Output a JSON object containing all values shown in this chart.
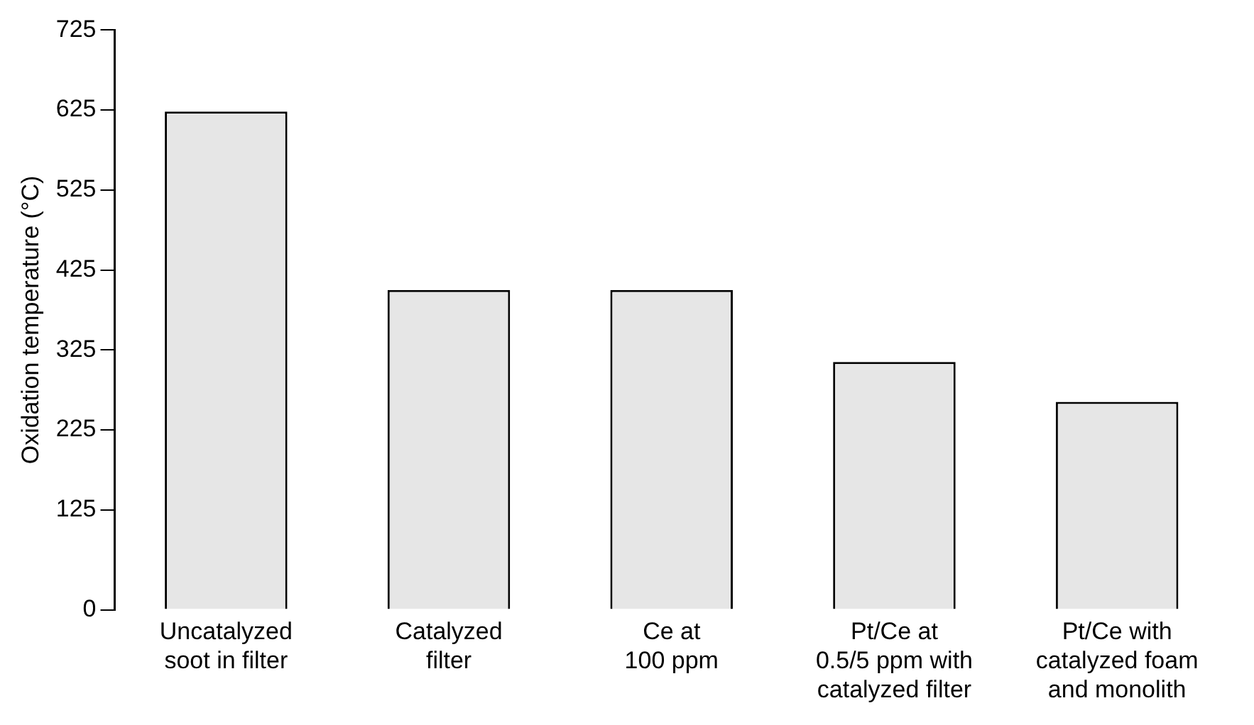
{
  "chart_data": {
    "type": "bar",
    "ylabel": "Oxidation temperature (°C)",
    "categories": [
      "Uncatalyzed\nsoot in filter",
      "Catalyzed\nfilter",
      "Ce at\n100 ppm",
      "Pt/Ce at\n0.5/5 ppm with\ncatalyzed filter",
      "Pt/Ce with\ncatalyzed foam\nand monolith"
    ],
    "values": [
      623,
      400,
      400,
      310,
      260
    ],
    "color": "#e6e6e6",
    "ylim": [
      0,
      725
    ],
    "yticks": [
      0,
      125,
      225,
      325,
      425,
      525,
      625,
      725
    ],
    "grid": false,
    "legend": false
  }
}
